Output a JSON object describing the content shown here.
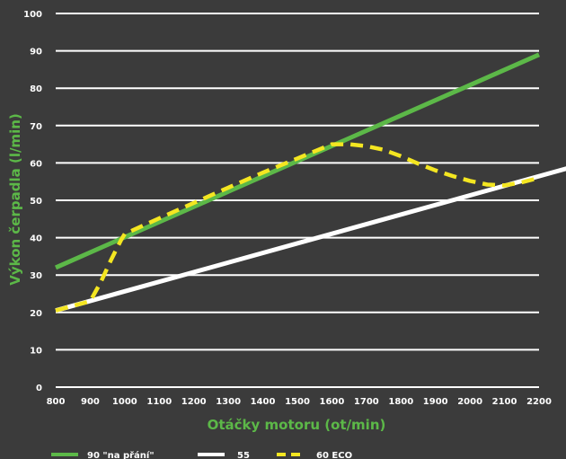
{
  "chart_data": {
    "type": "line",
    "xlabel": "Otáčky motoru (ot/min)",
    "ylabel": "Výkon čerpadla (l/min)",
    "xlim": [
      800,
      2200
    ],
    "ylim": [
      0,
      100
    ],
    "x_ticks": [
      800,
      900,
      1000,
      1100,
      1200,
      1300,
      1400,
      1500,
      1600,
      1700,
      1800,
      1900,
      2000,
      2100,
      2200
    ],
    "y_ticks": [
      0,
      10,
      20,
      30,
      40,
      50,
      60,
      70,
      80,
      90,
      100
    ],
    "grid": "horizontal",
    "legend_position": "bottom",
    "series": [
      {
        "name": "90   \"na přání\"",
        "color": "#5cb848",
        "style": "solid",
        "x": [
          800,
          2200
        ],
        "y": [
          32,
          89
        ]
      },
      {
        "name": "55",
        "color": "#ffffff",
        "style": "solid",
        "x": [
          800,
          2280
        ],
        "y": [
          20.5,
          58.5
        ]
      },
      {
        "name": "60 ECO",
        "color": "#f4e621",
        "style": "dashed",
        "x": [
          800,
          900,
          930,
          960,
          990,
          1000,
          1100,
          1200,
          1300,
          1400,
          1500,
          1600,
          1650,
          1700,
          1750,
          1800,
          1850,
          1900,
          1950,
          2000,
          2050,
          2100,
          2150,
          2200
        ],
        "y": [
          20.5,
          23,
          28,
          34,
          39.5,
          41,
          45.2,
          49.3,
          53.4,
          57.4,
          61.2,
          65,
          65,
          64.5,
          63.5,
          61.8,
          59.8,
          58,
          56.5,
          55.2,
          54.2,
          54,
          54.8,
          56
        ]
      }
    ]
  }
}
